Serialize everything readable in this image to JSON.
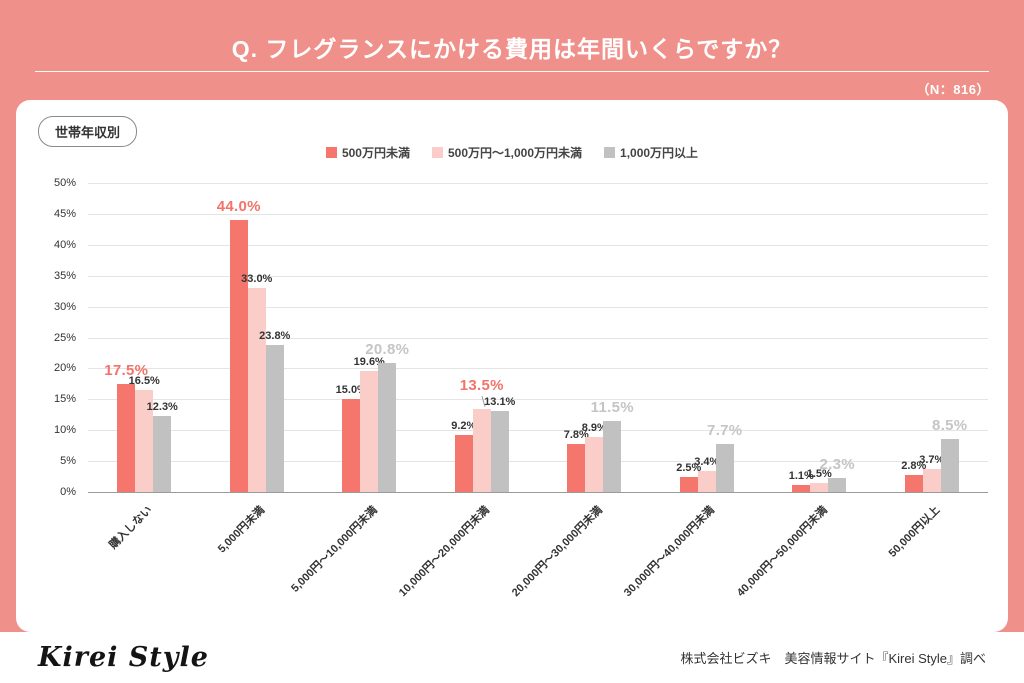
{
  "header": {
    "title": "Q. フレグランスにかける費用は年間いくらですか？",
    "n_label": "（N：816）"
  },
  "card": {
    "badge": "世帯年収別"
  },
  "footer": {
    "logo": "Kirei Style",
    "credit": "株式会社ビズキ　美容情報サイト『Kirei Style』調べ"
  },
  "colors": {
    "background": "#f0908a",
    "coral": "#f4766c",
    "pink": "#fbcdc8",
    "gray": "#c1c1c1",
    "emphasis_coral_label": "#f2736a",
    "emphasis_gray_label": "#c5c5c5"
  },
  "chart_data": {
    "type": "bar",
    "title": "Q. フレグランスにかける費用は年間いくらですか？",
    "sample_size": "（N：816）",
    "segment": "世帯年収別",
    "categories": [
      "購入しない",
      "5,000円未満",
      "5,000円〜10,000円未満",
      "10,000円〜20,000円未満",
      "20,000円〜30,000円未満",
      "30,000円〜40,000円未満",
      "40,000円〜50,000円未満",
      "50,000円以上"
    ],
    "series": [
      {
        "name": "500万円未満",
        "color": "#f4766c",
        "values": [
          17.5,
          44.0,
          15.0,
          9.2,
          7.8,
          2.5,
          1.1,
          2.8
        ]
      },
      {
        "name": "500万円〜1,000万円未満",
        "color": "#fbcdc8",
        "values": [
          16.5,
          33.0,
          19.6,
          13.5,
          8.9,
          3.4,
          1.5,
          3.7
        ]
      },
      {
        "name": "1,000万円以上",
        "color": "#c1c1c1",
        "values": [
          12.3,
          23.8,
          20.8,
          13.1,
          11.5,
          7.7,
          2.3,
          8.5
        ]
      }
    ],
    "emphasis_series": [
      0,
      0,
      2,
      1,
      2,
      2,
      2,
      2
    ],
    "emphasis_label_colors": [
      "#f2736a",
      "#f2736a",
      "#c5c5c5"
    ],
    "connector_group": 3,
    "xlabel": "",
    "ylabel": "",
    "ylim": [
      0,
      50
    ],
    "ytick_step": 5,
    "ytick_suffix": "%",
    "grid": true,
    "legend_position": "top-center"
  }
}
